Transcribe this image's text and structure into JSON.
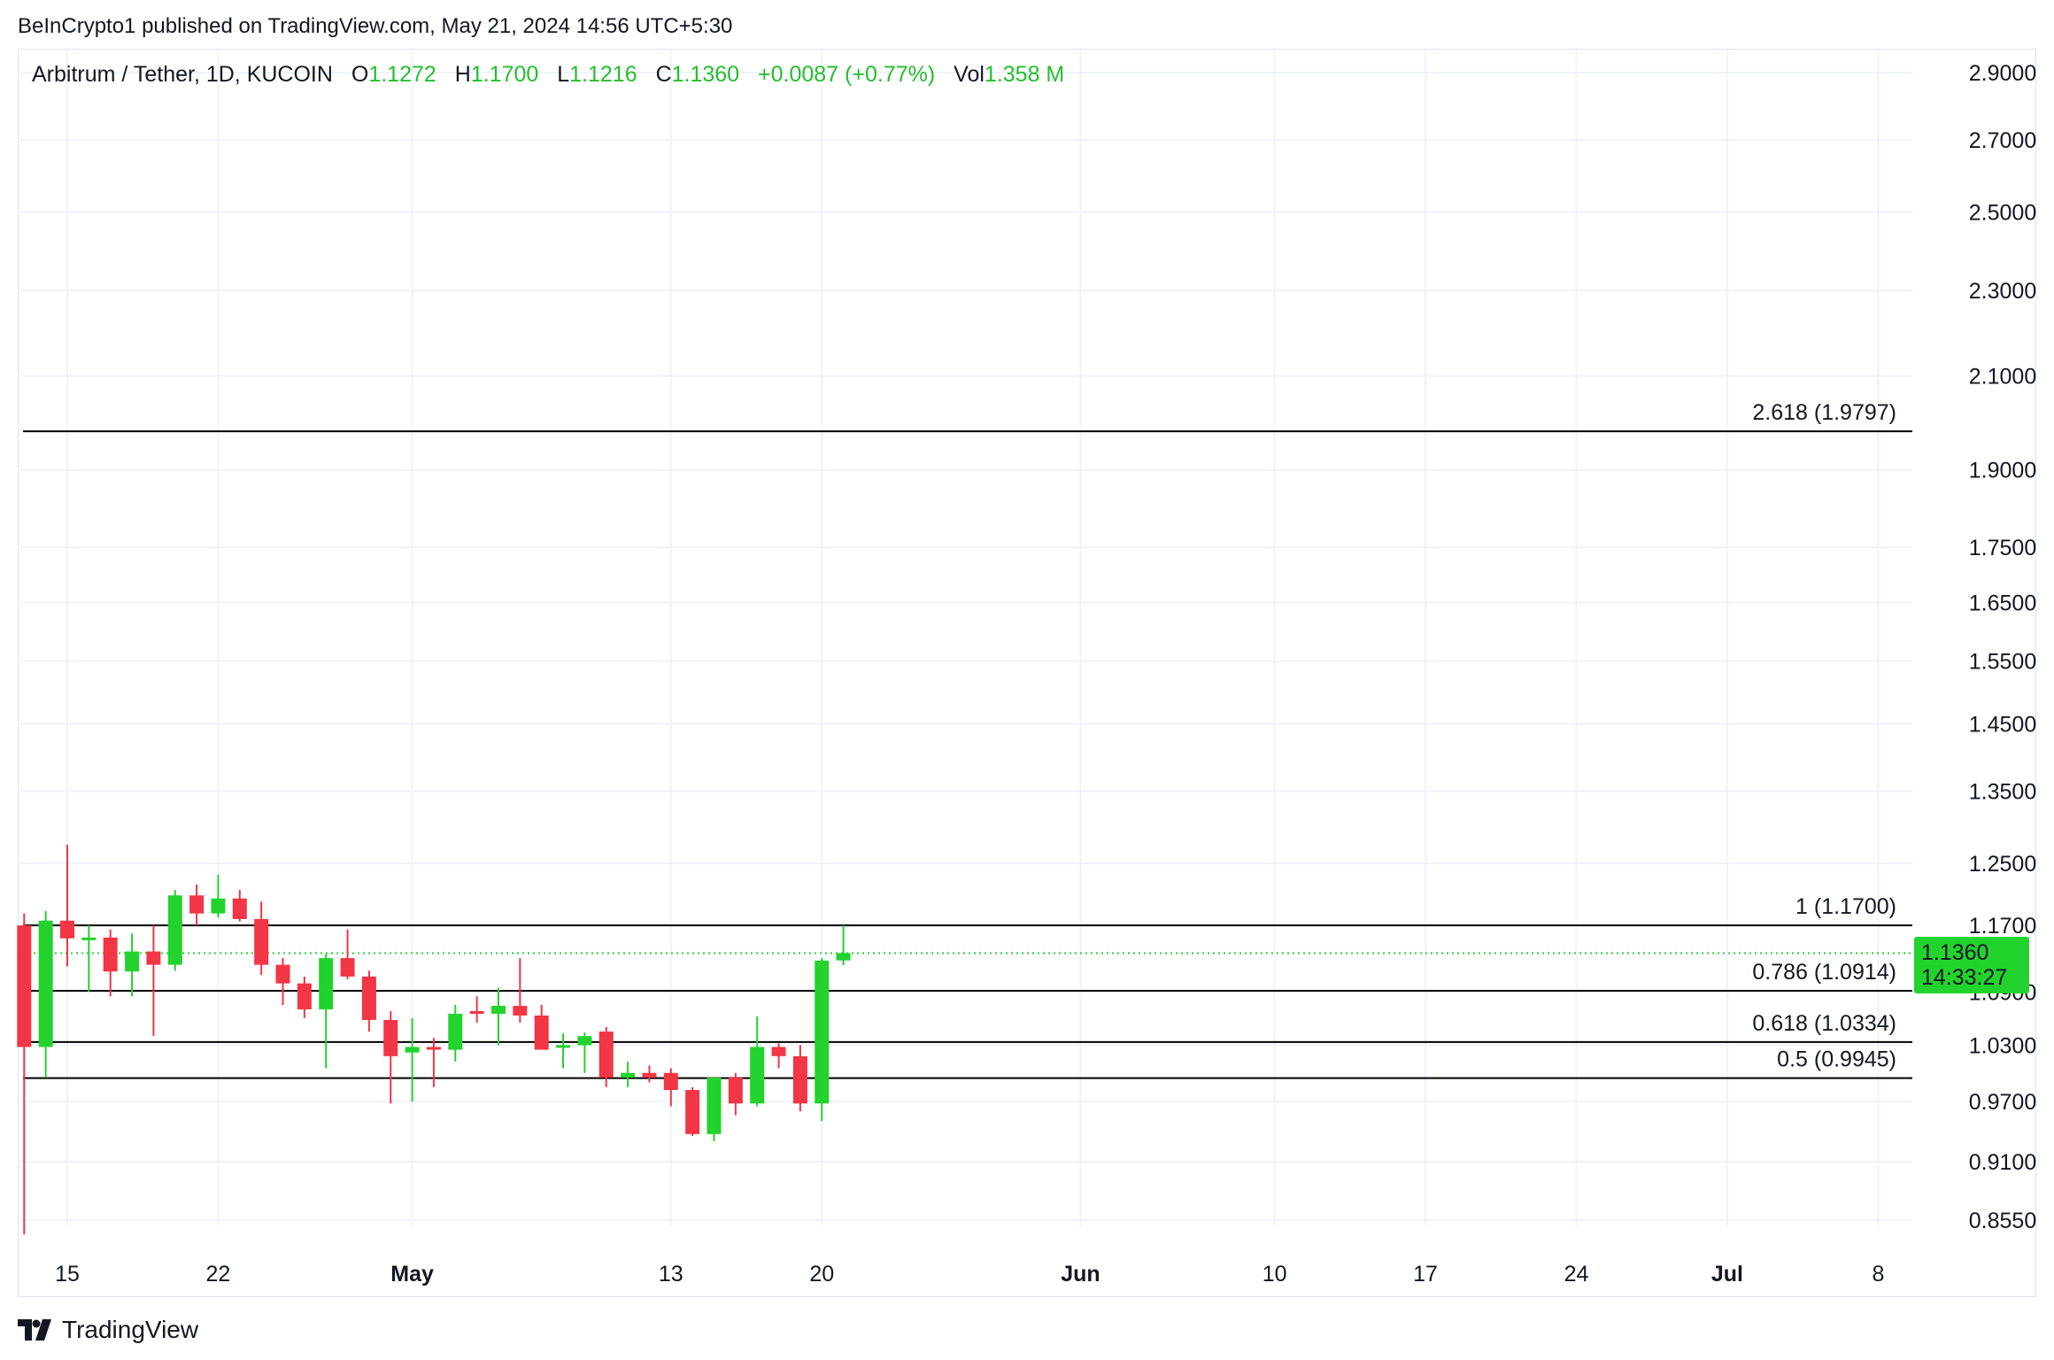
{
  "header": {
    "published": "BeInCrypto1 published on TradingView.com, May 21, 2024 14:56 UTC+5:30"
  },
  "legend": {
    "symbol": "Arbitrum / Tether, 1D, KUCOIN",
    "o_label": "O",
    "o_value": "1.1272",
    "h_label": "H",
    "h_value": "1.1700",
    "l_label": "L",
    "l_value": "1.1216",
    "c_label": "C",
    "c_value": "1.1360",
    "change": "+0.0087 (+0.77%)",
    "vol_label": "Vol",
    "vol_value": "1.358 M"
  },
  "price_tag": {
    "price": "1.1360",
    "countdown": "14:33:27",
    "color": "#22d32d"
  },
  "footer": {
    "brand": "TradingView"
  },
  "colors": {
    "up": "#22d32d",
    "down": "#f23645",
    "grid": "#f0f3fa",
    "fib_line": "#000000"
  },
  "chart_data": {
    "type": "candlestick",
    "y_scale": "log",
    "y_ticks": [
      "2.9000",
      "2.7000",
      "2.5000",
      "2.3000",
      "2.1000",
      "1.9000",
      "1.7500",
      "1.6500",
      "1.5500",
      "1.4500",
      "1.3500",
      "1.2500",
      "1.1700",
      "1.0900",
      "1.0300",
      "0.9700",
      "0.9100",
      "0.8550"
    ],
    "x_ticks": [
      {
        "label": "15",
        "date": "2024-04-15",
        "bold": false
      },
      {
        "label": "22",
        "date": "2024-04-22",
        "bold": false
      },
      {
        "label": "May",
        "date": "2024-05-01",
        "bold": true
      },
      {
        "label": "13",
        "date": "2024-05-13",
        "bold": false
      },
      {
        "label": "20",
        "date": "2024-05-20",
        "bold": false
      },
      {
        "label": "Jun",
        "date": "2024-06-01",
        "bold": true
      },
      {
        "label": "10",
        "date": "2024-06-10",
        "bold": false
      },
      {
        "label": "17",
        "date": "2024-06-17",
        "bold": false
      },
      {
        "label": "24",
        "date": "2024-06-24",
        "bold": false
      },
      {
        "label": "Jul",
        "date": "2024-07-01",
        "bold": true
      },
      {
        "label": "8",
        "date": "2024-07-08",
        "bold": false
      }
    ],
    "current_price": 1.136,
    "fib_levels": [
      {
        "label": "2.618 (1.9797)",
        "value": 1.9797
      },
      {
        "label": "1 (1.1700)",
        "value": 1.17
      },
      {
        "label": "0.786 (1.0914)",
        "value": 1.0914
      },
      {
        "label": "0.618 (1.0334)",
        "value": 1.0334
      },
      {
        "label": "0.5 (0.9945)",
        "value": 0.9945
      }
    ],
    "candles": [
      {
        "date": "2024-04-13",
        "o": 1.17,
        "h": 1.185,
        "l": 0.842,
        "c": 1.028
      },
      {
        "date": "2024-04-14",
        "o": 1.028,
        "h": 1.188,
        "l": 0.995,
        "c": 1.176
      },
      {
        "date": "2024-04-15",
        "o": 1.176,
        "h": 1.275,
        "l": 1.12,
        "c": 1.154
      },
      {
        "date": "2024-04-16",
        "o": 1.154,
        "h": 1.17,
        "l": 1.09,
        "c": 1.155
      },
      {
        "date": "2024-04-17",
        "o": 1.155,
        "h": 1.165,
        "l": 1.085,
        "c": 1.114
      },
      {
        "date": "2024-04-18",
        "o": 1.114,
        "h": 1.16,
        "l": 1.085,
        "c": 1.138
      },
      {
        "date": "2024-04-19",
        "o": 1.138,
        "h": 1.17,
        "l": 1.04,
        "c": 1.122
      },
      {
        "date": "2024-04-20",
        "o": 1.122,
        "h": 1.215,
        "l": 1.115,
        "c": 1.208
      },
      {
        "date": "2024-04-21",
        "o": 1.208,
        "h": 1.222,
        "l": 1.17,
        "c": 1.185
      },
      {
        "date": "2024-04-22",
        "o": 1.185,
        "h": 1.235,
        "l": 1.18,
        "c": 1.204
      },
      {
        "date": "2024-04-23",
        "o": 1.204,
        "h": 1.215,
        "l": 1.175,
        "c": 1.178
      },
      {
        "date": "2024-04-24",
        "o": 1.178,
        "h": 1.2,
        "l": 1.11,
        "c": 1.122
      },
      {
        "date": "2024-04-25",
        "o": 1.122,
        "h": 1.13,
        "l": 1.075,
        "c": 1.1
      },
      {
        "date": "2024-04-26",
        "o": 1.1,
        "h": 1.108,
        "l": 1.06,
        "c": 1.07
      },
      {
        "date": "2024-04-27",
        "o": 1.07,
        "h": 1.135,
        "l": 1.005,
        "c": 1.13
      },
      {
        "date": "2024-04-28",
        "o": 1.13,
        "h": 1.165,
        "l": 1.105,
        "c": 1.108
      },
      {
        "date": "2024-04-29",
        "o": 1.108,
        "h": 1.115,
        "l": 1.045,
        "c": 1.058
      },
      {
        "date": "2024-04-30",
        "o": 1.058,
        "h": 1.068,
        "l": 0.968,
        "c": 1.018
      },
      {
        "date": "2024-05-01",
        "o": 1.022,
        "h": 1.06,
        "l": 0.97,
        "c": 1.028
      },
      {
        "date": "2024-05-02",
        "o": 1.028,
        "h": 1.038,
        "l": 0.985,
        "c": 1.025
      },
      {
        "date": "2024-05-03",
        "o": 1.025,
        "h": 1.075,
        "l": 1.012,
        "c": 1.065
      },
      {
        "date": "2024-05-04",
        "o": 1.068,
        "h": 1.085,
        "l": 1.055,
        "c": 1.065
      },
      {
        "date": "2024-05-05",
        "o": 1.065,
        "h": 1.095,
        "l": 1.03,
        "c": 1.074
      },
      {
        "date": "2024-05-06",
        "o": 1.074,
        "h": 1.13,
        "l": 1.055,
        "c": 1.063
      },
      {
        "date": "2024-05-07",
        "o": 1.063,
        "h": 1.075,
        "l": 1.025,
        "c": 1.025
      },
      {
        "date": "2024-05-08",
        "o": 1.028,
        "h": 1.043,
        "l": 1.005,
        "c": 1.03
      },
      {
        "date": "2024-05-09",
        "o": 1.03,
        "h": 1.044,
        "l": 1.0,
        "c": 1.04
      },
      {
        "date": "2024-05-10",
        "o": 1.045,
        "h": 1.05,
        "l": 0.985,
        "c": 0.995
      },
      {
        "date": "2024-05-11",
        "o": 0.995,
        "h": 1.012,
        "l": 0.985,
        "c": 1.0
      },
      {
        "date": "2024-05-12",
        "o": 1.0,
        "h": 1.008,
        "l": 0.99,
        "c": 0.995
      },
      {
        "date": "2024-05-13",
        "o": 1.0,
        "h": 1.005,
        "l": 0.965,
        "c": 0.982
      },
      {
        "date": "2024-05-14",
        "o": 0.982,
        "h": 0.985,
        "l": 0.935,
        "c": 0.937
      },
      {
        "date": "2024-05-15",
        "o": 0.937,
        "h": 0.995,
        "l": 0.93,
        "c": 0.995
      },
      {
        "date": "2024-05-16",
        "o": 0.995,
        "h": 1.0,
        "l": 0.956,
        "c": 0.968
      },
      {
        "date": "2024-05-17",
        "o": 0.968,
        "h": 1.062,
        "l": 0.965,
        "c": 1.028
      },
      {
        "date": "2024-05-18",
        "o": 1.028,
        "h": 1.032,
        "l": 1.005,
        "c": 1.018
      },
      {
        "date": "2024-05-19",
        "o": 1.018,
        "h": 1.03,
        "l": 0.96,
        "c": 0.968
      },
      {
        "date": "2024-05-20",
        "o": 0.968,
        "h": 1.13,
        "l": 0.95,
        "c": 1.127
      },
      {
        "date": "2024-05-21",
        "o": 1.1272,
        "h": 1.17,
        "l": 1.1216,
        "c": 1.136
      }
    ]
  }
}
